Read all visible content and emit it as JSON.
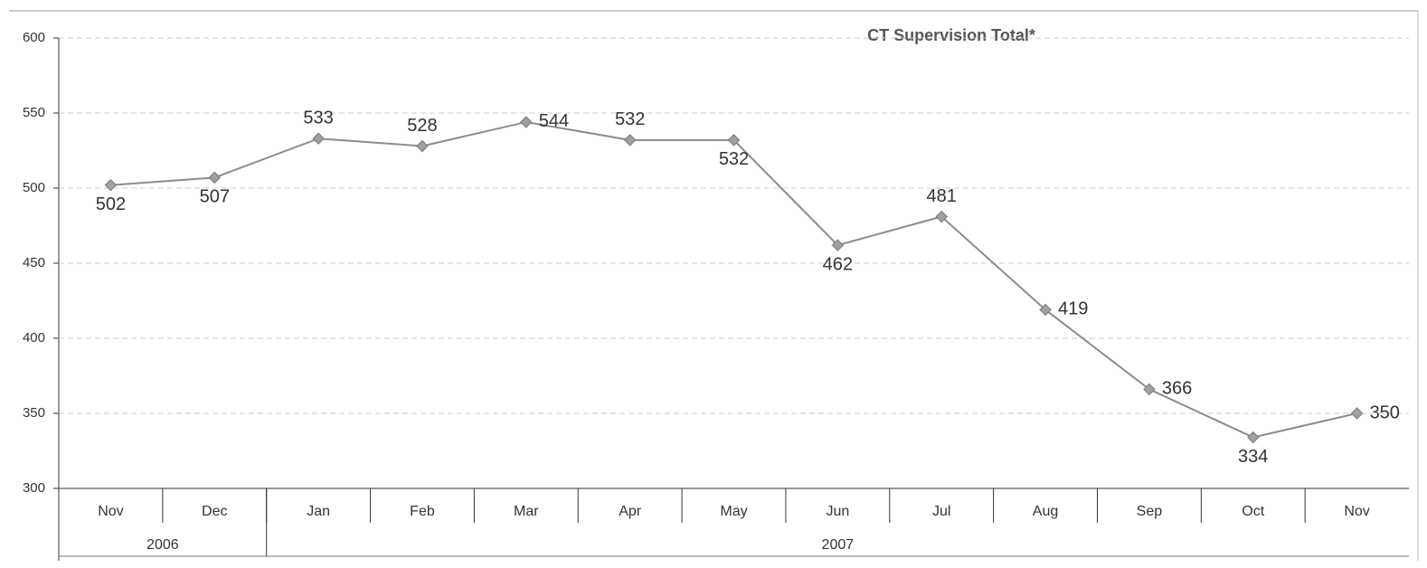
{
  "chart_data": {
    "type": "line",
    "title": "CT Supervision Total*",
    "categories": [
      "Nov",
      "Dec",
      "Jan",
      "Feb",
      "Mar",
      "Apr",
      "May",
      "Jun",
      "Jul",
      "Aug",
      "Sep",
      "Oct",
      "Nov"
    ],
    "groups": [
      {
        "label": "2006",
        "count": 2
      },
      {
        "label": "2007",
        "count": 11
      }
    ],
    "values": [
      502,
      507,
      533,
      528,
      544,
      532,
      532,
      462,
      481,
      419,
      366,
      334,
      350
    ],
    "color": "#8c8c8c",
    "marker_color": "#a0a0a0",
    "ylim": [
      300,
      600
    ],
    "yticks": [
      300,
      350,
      400,
      450,
      500,
      550,
      600
    ],
    "grid": true
  }
}
